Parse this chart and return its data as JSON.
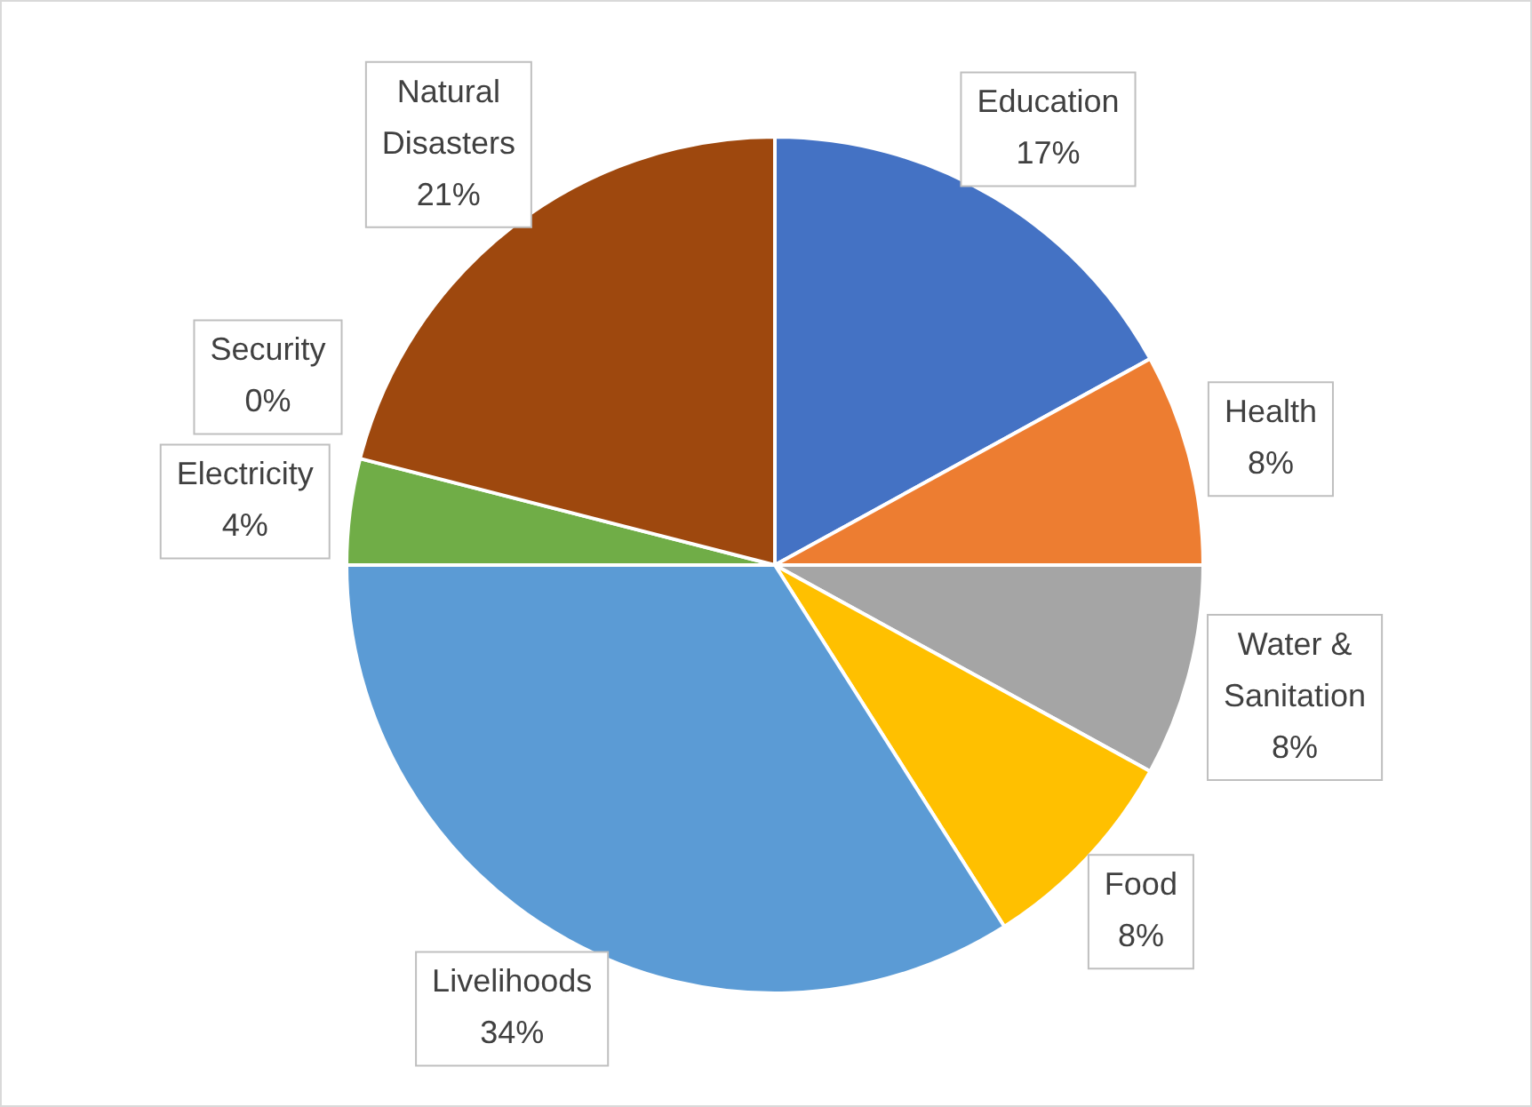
{
  "chart_data": {
    "type": "pie",
    "categories": [
      "Education",
      "Health",
      "Water & Sanitation",
      "Food",
      "Livelihoods",
      "Electricity",
      "Security",
      "Natural Disasters"
    ],
    "values": [
      17,
      8,
      8,
      8,
      34,
      4,
      0,
      21
    ],
    "value_labels": [
      "17%",
      "8%",
      "8%",
      "8%",
      "34%",
      "4%",
      "0%",
      "21%"
    ],
    "colors": [
      "#4472c4",
      "#ed7d31",
      "#a5a5a5",
      "#ffc000",
      "#5b9bd5",
      "#70ad47",
      "#264478",
      "#9e480e"
    ],
    "legend": false
  }
}
